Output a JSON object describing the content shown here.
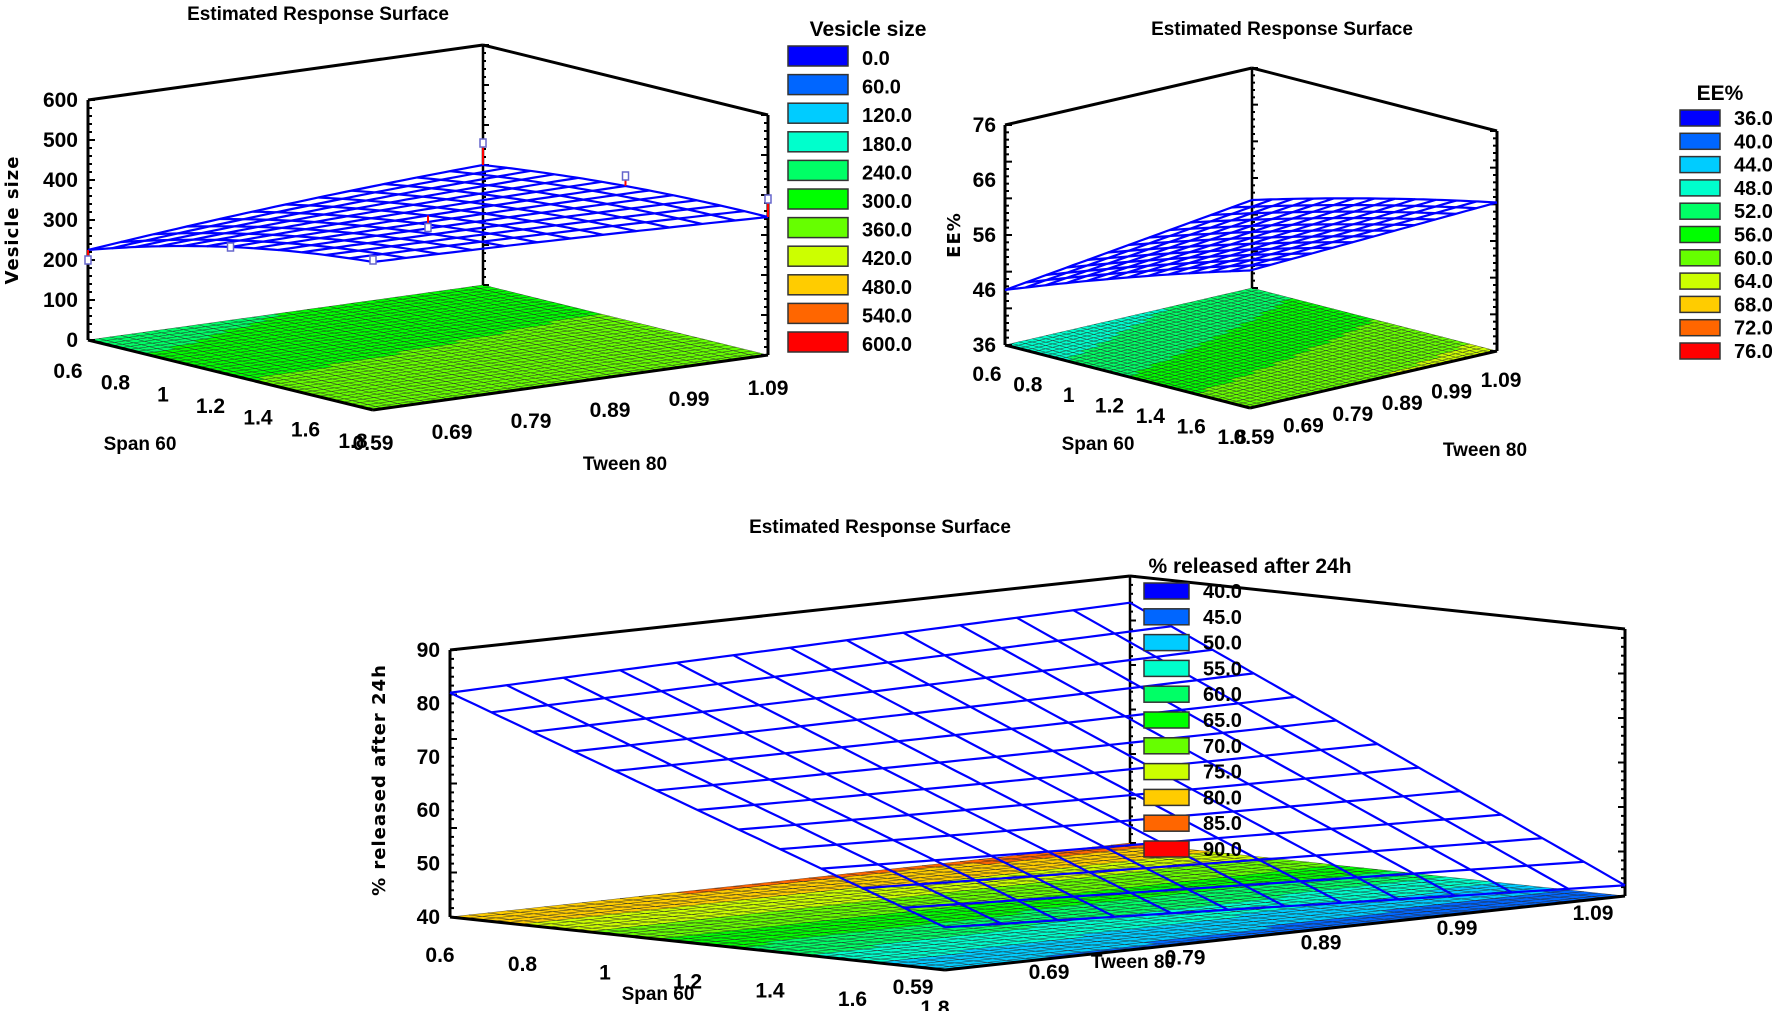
{
  "chart_data": [
    {
      "type": "surface3d",
      "title": "Estimated Response Surface",
      "xlabel": "Span 60",
      "ylabel": "Tween 80",
      "zlabel": "Vesicle size",
      "x_ticks": [
        "0.6",
        "0.8",
        "1",
        "1.2",
        "1.4",
        "1.6",
        "1.8"
      ],
      "y_ticks": [
        "0.59",
        "0.69",
        "0.79",
        "0.89",
        "0.99",
        "1.09"
      ],
      "z_ticks": [
        "0",
        "100",
        "200",
        "300",
        "400",
        "500",
        "600"
      ],
      "xlim": [
        0.6,
        1.8
      ],
      "ylim": [
        0.59,
        1.09
      ],
      "zlim": [
        0,
        600
      ],
      "surface_grid": {
        "x": [
          0.6,
          1.2,
          1.8
        ],
        "y": [
          0.59,
          0.84,
          1.09
        ],
        "z": [
          [
            225,
            270,
            300
          ],
          [
            320,
            330,
            335
          ],
          [
            370,
            360,
            345
          ]
        ]
      },
      "observed_points": [
        {
          "x": 0.6,
          "y": 0.59,
          "z": 200
        },
        {
          "x": 0.6,
          "y": 1.09,
          "z": 355
        },
        {
          "x": 1.2,
          "y": 0.84,
          "z": 300
        },
        {
          "x": 1.8,
          "y": 0.59,
          "z": 375
        },
        {
          "x": 1.8,
          "y": 1.09,
          "z": 390
        },
        {
          "x": 1.2,
          "y": 0.59,
          "z": 320
        },
        {
          "x": 1.2,
          "y": 1.09,
          "z": 360
        }
      ],
      "legend": {
        "title": "Vesicle size",
        "position": "right",
        "entries": [
          "0.0",
          "60.0",
          "120.0",
          "180.0",
          "240.0",
          "300.0",
          "360.0",
          "420.0",
          "480.0",
          "540.0",
          "600.0"
        ],
        "colors": [
          "#0000ff",
          "#0066ff",
          "#00ccff",
          "#00ffcc",
          "#00ff66",
          "#00ff00",
          "#66ff00",
          "#ccff00",
          "#ffcc00",
          "#ff6600",
          "#ff0000"
        ]
      }
    },
    {
      "type": "surface3d",
      "title": "Estimated Response Surface",
      "xlabel": "Span 60",
      "ylabel": "Tween 80",
      "zlabel": "EE%",
      "x_ticks": [
        "0.6",
        "0.8",
        "1",
        "1.2",
        "1.4",
        "1.6",
        "1.8"
      ],
      "y_ticks": [
        "0.59",
        "0.69",
        "0.79",
        "0.89",
        "0.99",
        "1.09"
      ],
      "z_ticks": [
        "36",
        "46",
        "56",
        "66",
        "76"
      ],
      "xlim": [
        0.6,
        1.8
      ],
      "ylim": [
        0.59,
        1.09
      ],
      "zlim": [
        36,
        76
      ],
      "surface_grid": {
        "x": [
          0.6,
          1.2,
          1.8
        ],
        "y": [
          0.59,
          0.84,
          1.09
        ],
        "z": [
          [
            46,
            49,
            52
          ],
          [
            54,
            56,
            58
          ],
          [
            61,
            62,
            63
          ]
        ]
      },
      "observed_points": [],
      "legend": {
        "title": "EE%",
        "position": "right",
        "entries": [
          "36.0",
          "40.0",
          "44.0",
          "48.0",
          "52.0",
          "56.0",
          "60.0",
          "64.0",
          "68.0",
          "72.0",
          "76.0"
        ],
        "colors": [
          "#0000ff",
          "#0066ff",
          "#00ccff",
          "#00ffcc",
          "#00ff66",
          "#00ff00",
          "#66ff00",
          "#ccff00",
          "#ffcc00",
          "#ff6600",
          "#ff0000"
        ]
      }
    },
    {
      "type": "surface3d",
      "title": "Estimated Response Surface",
      "xlabel": "Span 60",
      "ylabel": "Tween 80",
      "zlabel": "% released after 24h",
      "x_ticks": [
        "0.6",
        "0.8",
        "1",
        "1.2",
        "1.4",
        "1.6",
        "1.8"
      ],
      "y_ticks": [
        "0.59",
        "0.69",
        "0.79",
        "0.89",
        "0.99",
        "1.09"
      ],
      "z_ticks": [
        "40",
        "50",
        "60",
        "70",
        "80",
        "90"
      ],
      "xlim": [
        0.6,
        1.8
      ],
      "ylim": [
        0.59,
        1.09
      ],
      "zlim": [
        40,
        90
      ],
      "surface_grid": {
        "x": [
          0.6,
          1.2,
          1.8
        ],
        "y": [
          0.59,
          0.84,
          1.09
        ],
        "z": [
          [
            82,
            83.5,
            85
          ],
          [
            65,
            64,
            63.5
          ],
          [
            48,
            45,
            42
          ]
        ]
      },
      "observed_points": [],
      "legend": {
        "title": "% released after 24h",
        "position": "right",
        "entries": [
          "40.0",
          "45.0",
          "50.0",
          "55.0",
          "60.0",
          "65.0",
          "70.0",
          "75.0",
          "80.0",
          "85.0",
          "90.0"
        ],
        "colors": [
          "#0000ff",
          "#0066ff",
          "#00ccff",
          "#00ffcc",
          "#00ff66",
          "#00ff00",
          "#66ff00",
          "#ccff00",
          "#ffcc00",
          "#ff6600",
          "#ff0000"
        ]
      }
    }
  ]
}
